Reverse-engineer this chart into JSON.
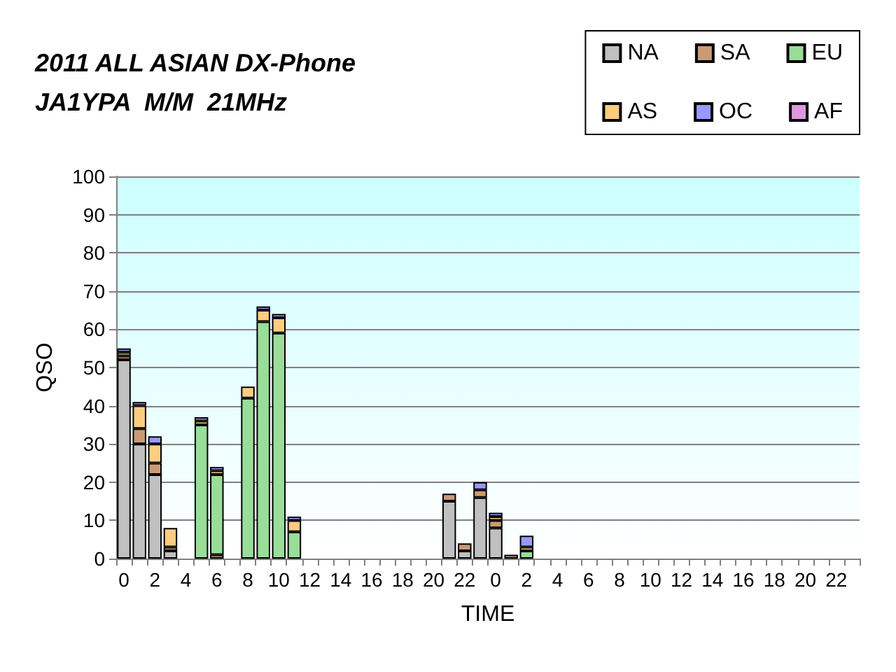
{
  "chart_data": {
    "type": "bar",
    "stacked": true,
    "title": "2011 ALL ASIAN DX-Phone\nJA1YPA  M/M  21MHz",
    "xlabel": "TIME",
    "ylabel": "QSO",
    "categories": [
      "0",
      null,
      "2",
      null,
      "4",
      null,
      "6",
      null,
      "8",
      null,
      "10",
      null,
      "12",
      null,
      "14",
      null,
      "16",
      null,
      "18",
      null,
      "20",
      null,
      "22",
      null,
      "0",
      null,
      "2",
      null,
      "4",
      null,
      "6",
      null,
      "8",
      null,
      "10",
      null,
      "12",
      null,
      "14",
      null,
      "16",
      null,
      "18",
      null,
      "20",
      null,
      "22",
      null
    ],
    "series": [
      {
        "name": "NA",
        "color": "#c0c0c0",
        "values": [
          52,
          30,
          22,
          2,
          0,
          0,
          0,
          0,
          0,
          0,
          0,
          0,
          0,
          0,
          0,
          0,
          0,
          0,
          0,
          0,
          0,
          15,
          2,
          16,
          8,
          0,
          0,
          0,
          0,
          0,
          0,
          0,
          0,
          0,
          0,
          0,
          0,
          0,
          0,
          0,
          0,
          0,
          0,
          0,
          0,
          0,
          0,
          0
        ]
      },
      {
        "name": "SA",
        "color": "#cc9977",
        "values": [
          1,
          4,
          3,
          1,
          0,
          0,
          1,
          0,
          0,
          0,
          0,
          0,
          0,
          0,
          0,
          0,
          0,
          0,
          0,
          0,
          0,
          2,
          2,
          2,
          2,
          1,
          0,
          0,
          0,
          0,
          0,
          0,
          0,
          0,
          0,
          0,
          0,
          0,
          0,
          0,
          0,
          0,
          0,
          0,
          0,
          0,
          0,
          0
        ]
      },
      {
        "name": "EU",
        "color": "#99dd99",
        "values": [
          0,
          0,
          0,
          0,
          0,
          35,
          21,
          0,
          42,
          62,
          59,
          7,
          0,
          0,
          0,
          0,
          0,
          0,
          0,
          0,
          0,
          0,
          0,
          0,
          0,
          0,
          2,
          0,
          0,
          0,
          0,
          0,
          0,
          0,
          0,
          0,
          0,
          0,
          0,
          0,
          0,
          0,
          0,
          0,
          0,
          0,
          0,
          0
        ]
      },
      {
        "name": "AS",
        "color": "#ffcc80",
        "values": [
          1,
          6,
          5,
          5,
          0,
          1,
          1,
          0,
          3,
          3,
          4,
          3,
          0,
          0,
          0,
          0,
          0,
          0,
          0,
          0,
          0,
          0,
          0,
          0,
          1,
          0,
          1,
          0,
          0,
          0,
          0,
          0,
          0,
          0,
          0,
          0,
          0,
          0,
          0,
          0,
          0,
          0,
          0,
          0,
          0,
          0,
          0,
          0
        ]
      },
      {
        "name": "OC",
        "color": "#9999ff",
        "values": [
          1,
          1,
          2,
          0,
          0,
          1,
          1,
          0,
          0,
          1,
          1,
          1,
          0,
          0,
          0,
          0,
          0,
          0,
          0,
          0,
          0,
          0,
          0,
          2,
          1,
          0,
          3,
          0,
          0,
          0,
          0,
          0,
          0,
          0,
          0,
          0,
          0,
          0,
          0,
          0,
          0,
          0,
          0,
          0,
          0,
          0,
          0,
          0
        ]
      },
      {
        "name": "AF",
        "color": "#dd99dd",
        "values": [
          0,
          0,
          0,
          0,
          0,
          0,
          0,
          0,
          0,
          0,
          0,
          0,
          0,
          0,
          0,
          0,
          0,
          0,
          0,
          0,
          0,
          0,
          0,
          0,
          0,
          0,
          0,
          0,
          0,
          0,
          0,
          0,
          0,
          0,
          0,
          0,
          0,
          0,
          0,
          0,
          0,
          0,
          0,
          0,
          0,
          0,
          0,
          0
        ]
      }
    ],
    "ylim": [
      0,
      100
    ],
    "yticks": [
      0,
      10,
      20,
      30,
      40,
      50,
      60,
      70,
      80,
      90,
      100
    ],
    "grid": "y",
    "legend": "top right"
  }
}
